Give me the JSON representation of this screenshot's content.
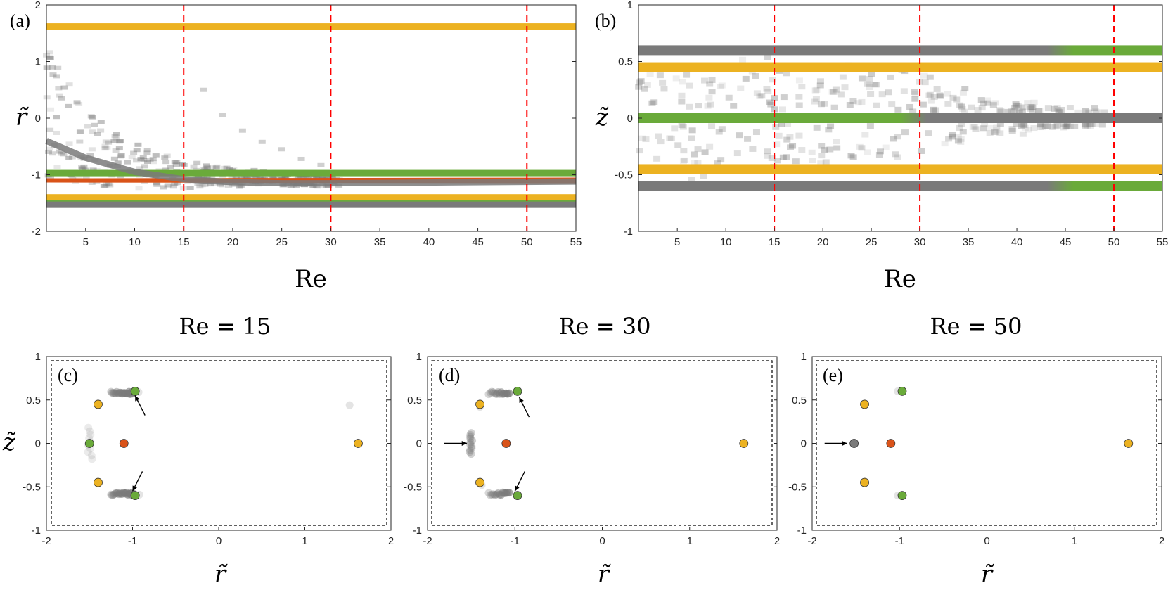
{
  "colors": {
    "yellow": "#ecb221",
    "green": "#6aaa3a",
    "red": "#d95319",
    "gray": "#7a7a7a",
    "dash_red": "#ff0000"
  },
  "chart_data": [
    {
      "panel": "(a)",
      "type": "heatmap",
      "xlabel": "Re",
      "ylabel": "r̃",
      "xlim": [
        1,
        55
      ],
      "ylim": [
        -2,
        2
      ],
      "xticks": [
        5,
        10,
        15,
        20,
        25,
        30,
        35,
        40,
        45,
        50,
        55
      ],
      "yticks": [
        -2,
        -1,
        0,
        1,
        2
      ],
      "vlines": [
        15,
        30,
        50
      ],
      "series": [
        {
          "name": "yellow outer",
          "color": "yellow",
          "x": [
            1,
            55
          ],
          "y": [
            1.62,
            1.62
          ]
        },
        {
          "name": "green upper",
          "color": "green",
          "x": [
            1,
            55
          ],
          "y": [
            -0.97,
            -0.97
          ]
        },
        {
          "name": "red center",
          "color": "red",
          "x": [
            1,
            55
          ],
          "y": [
            -1.1,
            -1.1
          ]
        },
        {
          "name": "yellow inner",
          "color": "yellow",
          "x": [
            1,
            55
          ],
          "y": [
            -1.4,
            -1.4
          ]
        },
        {
          "name": "green lower",
          "color": "green",
          "x": [
            1,
            55
          ],
          "y": [
            -1.5,
            -1.5
          ]
        },
        {
          "name": "gray converge",
          "color": "gray",
          "x": [
            1,
            5,
            10,
            15,
            20,
            25,
            30
          ],
          "y": [
            -0.4,
            -0.7,
            -0.95,
            -1.08,
            -1.13,
            -1.15,
            -1.15
          ]
        },
        {
          "name": "gray bottom",
          "color": "gray",
          "x": [
            1,
            55
          ],
          "y": [
            -1.53,
            -1.53
          ]
        }
      ]
    },
    {
      "panel": "(b)",
      "type": "heatmap",
      "xlabel": "Re",
      "ylabel": "z̃",
      "xlim": [
        1,
        55
      ],
      "ylim": [
        -1,
        1
      ],
      "xticks": [
        5,
        10,
        15,
        20,
        25,
        30,
        35,
        40,
        45,
        50,
        55
      ],
      "yticks": [
        -1,
        -0.5,
        0,
        0.5,
        1
      ],
      "vlines": [
        15,
        30,
        50
      ],
      "series": [
        {
          "name": "gray/green upper",
          "color": "gray",
          "x": [
            1,
            45,
            55
          ],
          "y": [
            0.6,
            0.6,
            0.6
          ]
        },
        {
          "name": "yellow upper",
          "color": "yellow",
          "x": [
            1,
            55
          ],
          "y": [
            0.45,
            0.45
          ]
        },
        {
          "name": "green/gray middle",
          "color": "green",
          "x": [
            1,
            30,
            55
          ],
          "y": [
            0.0,
            0.0,
            0.0
          ]
        },
        {
          "name": "yellow lower",
          "color": "yellow",
          "x": [
            1,
            55
          ],
          "y": [
            -0.45,
            -0.45
          ]
        },
        {
          "name": "gray/green lower",
          "color": "gray",
          "x": [
            1,
            45,
            55
          ],
          "y": [
            -0.6,
            -0.6,
            -0.6
          ]
        }
      ]
    },
    {
      "panel": "(c)",
      "type": "scatter",
      "title": "Re = 15",
      "xlabel": "r̃",
      "ylabel": "z̃",
      "xlim": [
        -2,
        2
      ],
      "ylim": [
        -1,
        1
      ],
      "xticks": [
        -2,
        -1,
        0,
        1,
        2
      ],
      "yticks": [
        -1,
        -0.5,
        0,
        0.5,
        1
      ],
      "points": [
        {
          "x": -1.4,
          "y": 0.45,
          "color": "yellow"
        },
        {
          "x": -1.4,
          "y": -0.45,
          "color": "yellow"
        },
        {
          "x": 1.62,
          "y": 0.0,
          "color": "yellow"
        },
        {
          "x": -1.5,
          "y": 0.0,
          "color": "green"
        },
        {
          "x": -0.97,
          "y": 0.6,
          "color": "green"
        },
        {
          "x": -0.97,
          "y": -0.6,
          "color": "green"
        },
        {
          "x": -1.1,
          "y": 0.0,
          "color": "red"
        }
      ],
      "arrows": [
        {
          "x": -0.97,
          "y": 0.55,
          "from": "lower-right"
        },
        {
          "x": -1.0,
          "y": -0.55,
          "from": "upper-right"
        }
      ]
    },
    {
      "panel": "(d)",
      "type": "scatter",
      "title": "Re = 30",
      "xlabel": "r̃",
      "ylabel": "",
      "xlim": [
        -2,
        2
      ],
      "ylim": [
        -1,
        1
      ],
      "xticks": [
        -2,
        -1,
        0,
        1,
        2
      ],
      "yticks": [
        -1,
        -0.5,
        0,
        0.5,
        1
      ],
      "points": [
        {
          "x": -1.4,
          "y": 0.45,
          "color": "yellow"
        },
        {
          "x": -1.4,
          "y": -0.45,
          "color": "yellow"
        },
        {
          "x": 1.62,
          "y": 0.0,
          "color": "yellow"
        },
        {
          "x": -0.97,
          "y": 0.6,
          "color": "green"
        },
        {
          "x": -0.97,
          "y": -0.6,
          "color": "green"
        },
        {
          "x": -1.1,
          "y": 0.0,
          "color": "red"
        }
      ],
      "arrows": [
        {
          "x": -0.95,
          "y": 0.53,
          "from": "lower-right"
        },
        {
          "x": -1.55,
          "y": 0.0,
          "from": "left"
        },
        {
          "x": -1.0,
          "y": -0.55,
          "from": "upper-right"
        }
      ]
    },
    {
      "panel": "(e)",
      "type": "scatter",
      "title": "Re = 50",
      "xlabel": "r̃",
      "ylabel": "",
      "xlim": [
        -2,
        2
      ],
      "ylim": [
        -1,
        1
      ],
      "xticks": [
        -2,
        -1,
        0,
        1,
        2
      ],
      "yticks": [
        -1,
        -0.5,
        0,
        0.5,
        1
      ],
      "points": [
        {
          "x": -1.4,
          "y": 0.45,
          "color": "yellow"
        },
        {
          "x": -1.4,
          "y": -0.45,
          "color": "yellow"
        },
        {
          "x": 1.62,
          "y": 0.0,
          "color": "yellow"
        },
        {
          "x": -0.97,
          "y": 0.6,
          "color": "green"
        },
        {
          "x": -0.97,
          "y": -0.6,
          "color": "green"
        },
        {
          "x": -1.1,
          "y": 0.0,
          "color": "red"
        },
        {
          "x": -1.52,
          "y": 0.0,
          "color": "gray"
        }
      ],
      "arrows": [
        {
          "x": -1.6,
          "y": 0.0,
          "from": "left"
        }
      ]
    }
  ]
}
